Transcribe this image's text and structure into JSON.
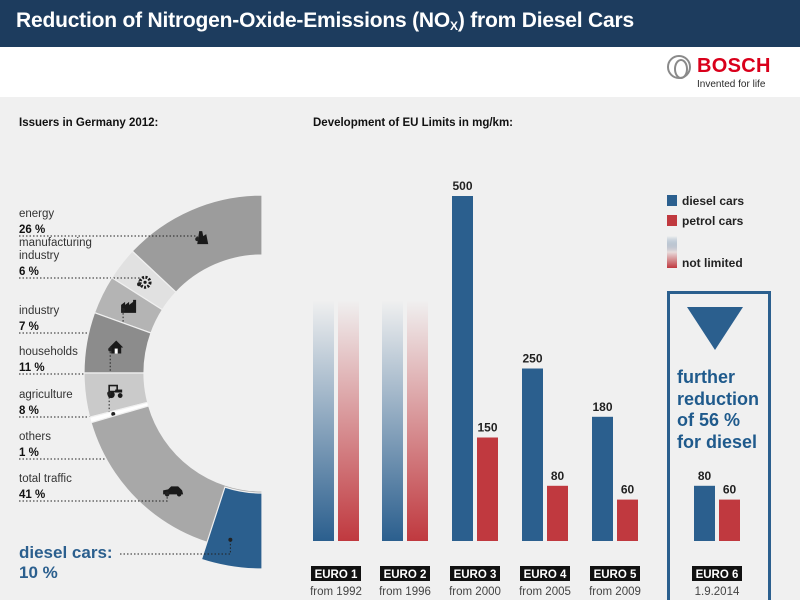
{
  "header": {
    "title_main": "Reduction of Nitrogen-Oxide-Emissions (NO",
    "title_sub": "X",
    "title_end": ") from Diesel Cars"
  },
  "brand": {
    "name": "BOSCH",
    "tagline": "Invented for life",
    "color": "#d9001b"
  },
  "issuers": {
    "title": "Issuers in Germany 2012:",
    "highlight_label": "diesel cars:",
    "highlight_value": "10 %"
  },
  "limits": {
    "title": "Development of EU Limits in mg/km:"
  },
  "legend": {
    "diesel": "diesel cars",
    "petrol": "petrol cars",
    "unlimited": "not limited"
  },
  "info": {
    "text_lines": [
      "further",
      "reduction",
      "of 56 %",
      "for diesel"
    ]
  },
  "colors": {
    "header_bg": "#1d3c5e",
    "diesel": "#2b5f8e",
    "petrol": "#c0393f",
    "ring_light": "#e1e1e1",
    "ring_mid": "#b4b4b4",
    "ring_dark": "#9c9c9c"
  },
  "chart_data": [
    {
      "type": "pie",
      "title": "Issuers in Germany 2012:",
      "slices": [
        {
          "label": "energy",
          "value": 26,
          "value_label": "26 %",
          "icon": "power-plant-icon"
        },
        {
          "label": "manufacturing industry",
          "label_lines": [
            "manufacturing",
            "industry"
          ],
          "value": 6,
          "value_label": "6 %",
          "icon": "gear-icon"
        },
        {
          "label": "industry",
          "value": 7,
          "value_label": "7 %",
          "icon": "factory-icon"
        },
        {
          "label": "households",
          "value": 11,
          "value_label": "11 %",
          "icon": "house-icon"
        },
        {
          "label": "agriculture",
          "value": 8,
          "value_label": "8 %",
          "icon": "tractor-icon"
        },
        {
          "label": "others",
          "value": 1,
          "value_label": "1 %"
        },
        {
          "label": "total traffic",
          "value": 41,
          "value_label": "41 %",
          "icon": "car-icon",
          "highlight_subset": {
            "label": "diesel cars",
            "value": 10
          }
        }
      ]
    },
    {
      "type": "bar",
      "title": "Development of EU Limits in mg/km:",
      "categories": [
        "EURO 1",
        "EURO 2",
        "EURO 3",
        "EURO 4",
        "EURO 5",
        "EURO 6"
      ],
      "dates": [
        "from 1992",
        "from 1996",
        "from 2000",
        "from 2005",
        "from 2009",
        "1.9.2014"
      ],
      "series": [
        {
          "name": "diesel cars",
          "values": [
            null,
            null,
            500,
            250,
            180,
            80
          ]
        },
        {
          "name": "petrol cars",
          "values": [
            null,
            null,
            150,
            80,
            60,
            60
          ]
        }
      ],
      "ylabel": "mg/km",
      "ylim": [
        0,
        500
      ],
      "legend": "right"
    }
  ]
}
